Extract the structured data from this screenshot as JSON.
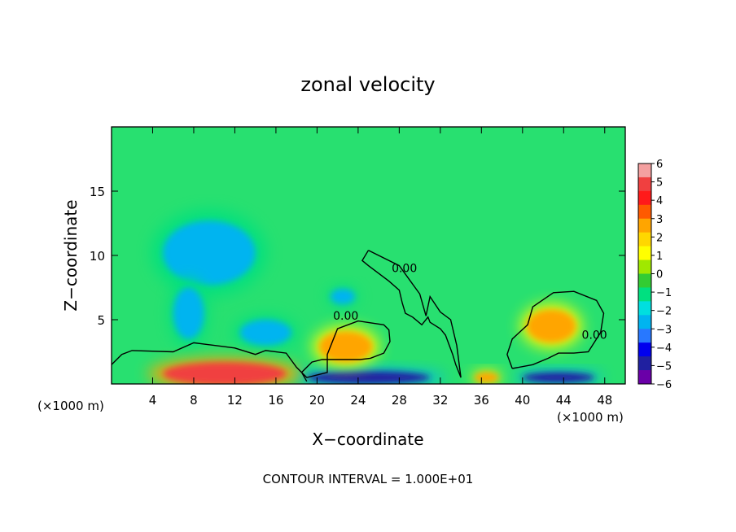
{
  "chart_data": {
    "type": "heatmap",
    "title": "zonal velocity",
    "xlabel": "X−coordinate",
    "ylabel": "Z−coordinate",
    "x_unit_left": "(×1000 m)",
    "x_unit_right": "(×1000 m)",
    "footer": "CONTOUR INTERVAL = 1.000E+01",
    "xlim": [
      0,
      50
    ],
    "ylim": [
      0,
      20
    ],
    "x_ticks": [
      4,
      8,
      12,
      16,
      20,
      24,
      28,
      32,
      36,
      40,
      44,
      48
    ],
    "x_tick_labels": [
      "4",
      "8",
      "12",
      "16",
      "20",
      "24",
      "28",
      "32",
      "36",
      "40",
      "44",
      "48"
    ],
    "y_ticks": [
      5,
      10,
      15
    ],
    "y_tick_labels": [
      "5",
      "10",
      "15"
    ],
    "colorbar": {
      "levels": [
        6,
        5,
        4,
        3,
        2,
        1,
        0,
        -1,
        -2,
        -3,
        -4,
        -5,
        -6
      ],
      "labels": [
        "6",
        "5",
        "4",
        "3",
        "2",
        "1",
        "0",
        "−1",
        "−2",
        "−3",
        "−4",
        "−5",
        "−6"
      ],
      "colors": [
        "#f4a0a0",
        "#f04040",
        "#ff1a1a",
        "#ff5a00",
        "#ffa500",
        "#ffd700",
        "#ffff00",
        "#a0e800",
        "#33cc33",
        "#00e080",
        "#00dfdf",
        "#00b4f0",
        "#2878ff",
        "#0000ee",
        "#2020a0",
        "#6a00a8"
      ]
    },
    "background_color": "#28e070",
    "regions": [
      {
        "kind": "negative",
        "center": [
          9.5,
          10.2
        ],
        "radius": [
          4.5,
          2.5
        ],
        "value": -3
      },
      {
        "kind": "negative",
        "center": [
          7.5,
          5.5
        ],
        "radius": [
          1.5,
          2.0
        ],
        "value": -3
      },
      {
        "kind": "negative",
        "center": [
          15,
          4.0
        ],
        "radius": [
          2.5,
          1.0
        ],
        "value": -3
      },
      {
        "kind": "negative",
        "center": [
          22.5,
          6.8
        ],
        "radius": [
          1.2,
          0.6
        ],
        "value": -3
      },
      {
        "kind": "negative",
        "center": [
          25,
          0.5
        ],
        "radius": [
          6,
          0.5
        ],
        "value": -5
      },
      {
        "kind": "negative",
        "center": [
          43.5,
          0.5
        ],
        "radius": [
          3.5,
          0.4
        ],
        "value": -5
      },
      {
        "kind": "positive",
        "center": [
          11,
          0.8
        ],
        "radius": [
          6,
          0.9
        ],
        "value": 5
      },
      {
        "kind": "positive",
        "center": [
          22.8,
          2.9
        ],
        "radius": [
          2.6,
          1.2
        ],
        "value": 3
      },
      {
        "kind": "positive",
        "center": [
          42.8,
          4.5
        ],
        "radius": [
          2.4,
          1.3
        ],
        "value": 3
      },
      {
        "kind": "positive",
        "center": [
          36.5,
          0.5
        ],
        "radius": [
          1.2,
          0.4
        ],
        "value": 3
      }
    ],
    "contours": [
      {
        "label": "0.00",
        "label_at": [
          22.8,
          5.0
        ],
        "points": [
          [
            0,
            1.5
          ],
          [
            1,
            2.3
          ],
          [
            2,
            2.6
          ],
          [
            6,
            2.5
          ],
          [
            8,
            3.2
          ],
          [
            10,
            3.0
          ],
          [
            12,
            2.8
          ],
          [
            14,
            2.3
          ],
          [
            15,
            2.6
          ],
          [
            17,
            2.4
          ],
          [
            18,
            1.3
          ],
          [
            19,
            0.5
          ],
          [
            21,
            0.9
          ],
          [
            21,
            2.3
          ],
          [
            22,
            4.3
          ],
          [
            24,
            4.9
          ],
          [
            26.5,
            4.6
          ],
          [
            27,
            4.2
          ],
          [
            27.1,
            3.3
          ],
          [
            26.5,
            2.4
          ],
          [
            25.2,
            2.0
          ],
          [
            24.2,
            1.9
          ],
          [
            22.5,
            1.9
          ],
          [
            20.5,
            1.9
          ],
          [
            19.5,
            1.7
          ],
          [
            18.5,
            0.9
          ],
          [
            19,
            0.2
          ]
        ]
      },
      {
        "label": "0.00",
        "label_at": [
          28.5,
          8.7
        ],
        "points": [
          [
            25,
            10.4
          ],
          [
            28,
            9.2
          ],
          [
            30,
            7.0
          ],
          [
            30.6,
            5.3
          ],
          [
            31,
            6.8
          ],
          [
            32,
            5.6
          ],
          [
            33,
            5.0
          ],
          [
            33.6,
            3.0
          ],
          [
            34,
            0.5
          ],
          [
            33.5,
            1.5
          ],
          [
            33.2,
            2.3
          ],
          [
            32.5,
            3.8
          ],
          [
            32.0,
            4.3
          ],
          [
            31.0,
            4.8
          ],
          [
            30.8,
            5.2
          ],
          [
            30.2,
            4.6
          ],
          [
            29.3,
            5.2
          ],
          [
            28.6,
            5.5
          ],
          [
            28.3,
            6.3
          ],
          [
            28.0,
            7.3
          ],
          [
            27.0,
            8.0
          ],
          [
            26.0,
            8.6
          ],
          [
            25.0,
            9.2
          ],
          [
            24.4,
            9.6
          ],
          [
            25,
            10.4
          ]
        ]
      },
      {
        "label": "0.00",
        "label_at": [
          47.0,
          3.5
        ],
        "points": [
          [
            39,
            1.2
          ],
          [
            38.5,
            2.3
          ],
          [
            39,
            3.5
          ],
          [
            40.5,
            4.6
          ],
          [
            41.0,
            6.0
          ],
          [
            43.0,
            7.1
          ],
          [
            45.0,
            7.2
          ],
          [
            47.2,
            6.5
          ],
          [
            47.9,
            5.5
          ],
          [
            47.6,
            4.0
          ],
          [
            46.4,
            2.5
          ],
          [
            45.0,
            2.4
          ],
          [
            43.5,
            2.4
          ],
          [
            42.5,
            2.0
          ],
          [
            41.0,
            1.5
          ],
          [
            39.0,
            1.2
          ]
        ]
      }
    ]
  }
}
